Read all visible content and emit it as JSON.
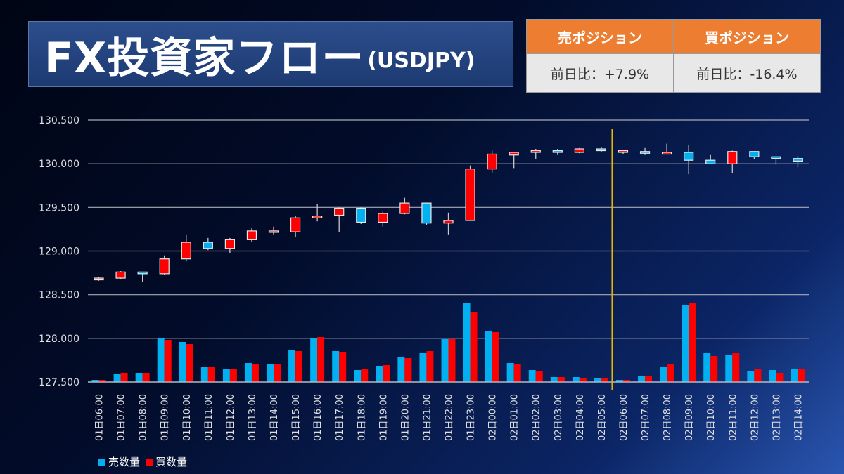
{
  "header": {
    "title": "FX投資家フロー",
    "subtitle": "(USDJPY)"
  },
  "positions": [
    {
      "label": "売ポジション",
      "change": "前日比：+7.9%"
    },
    {
      "label": "買ポジション",
      "change": "前日比：-16.4%"
    }
  ],
  "colors": {
    "sell": "#00b0f0",
    "buy": "#ff0000",
    "marker": "#e8b400",
    "up_candle": "#ff0000",
    "down_candle": "#00b0f0"
  },
  "chart_data": {
    "type": "candlestick+bar",
    "ylim": [
      127.5,
      130.5
    ],
    "yticks": [
      "127.500",
      "128.000",
      "128.500",
      "129.000",
      "129.500",
      "130.000",
      "130.500"
    ],
    "ytick_values": [
      127.5,
      128,
      128.5,
      129,
      129.5,
      130,
      130.5
    ],
    "grid": true,
    "legend_placement": "bottom-left",
    "categories": [
      "01日06:00",
      "01日07:00",
      "01日08:00",
      "01日09:00",
      "01日10:00",
      "01日11:00",
      "01日12:00",
      "01日13:00",
      "01日14:00",
      "01日15:00",
      "01日16:00",
      "01日17:00",
      "01日18:00",
      "01日19:00",
      "01日20:00",
      "01日21:00",
      "01日22:00",
      "01日23:00",
      "02日00:00",
      "02日01:00",
      "02日02:00",
      "02日03:00",
      "02日04:00",
      "02日05:00",
      "02日06:00",
      "02日07:00",
      "02日08:00",
      "02日09:00",
      "02日10:00",
      "02日11:00",
      "02日12:00",
      "02日13:00",
      "02日14:00"
    ],
    "ohlc": [
      [
        128.67,
        128.7,
        128.66,
        128.69
      ],
      [
        128.69,
        128.77,
        128.68,
        128.76
      ],
      [
        128.76,
        128.76,
        128.65,
        128.74
      ],
      [
        128.74,
        128.95,
        128.73,
        128.91
      ],
      [
        128.91,
        129.19,
        128.88,
        129.1
      ],
      [
        129.1,
        129.15,
        129.01,
        129.03
      ],
      [
        129.03,
        129.15,
        128.98,
        129.13
      ],
      [
        129.13,
        129.26,
        129.1,
        129.23
      ],
      [
        129.22,
        129.28,
        129.19,
        129.23
      ],
      [
        129.22,
        129.4,
        129.16,
        129.38
      ],
      [
        129.38,
        129.54,
        129.34,
        129.4
      ],
      [
        129.41,
        129.5,
        129.22,
        129.49
      ],
      [
        129.49,
        129.5,
        129.31,
        129.33
      ],
      [
        129.33,
        129.45,
        129.28,
        129.43
      ],
      [
        129.43,
        129.61,
        129.42,
        129.55
      ],
      [
        129.55,
        129.55,
        129.3,
        129.32
      ],
      [
        129.32,
        129.44,
        129.19,
        129.35
      ],
      [
        129.35,
        129.98,
        129.35,
        129.94
      ],
      [
        129.94,
        130.15,
        129.89,
        130.11
      ],
      [
        130.1,
        130.13,
        129.95,
        130.13
      ],
      [
        130.13,
        130.17,
        130.05,
        130.15
      ],
      [
        130.15,
        130.17,
        130.1,
        130.13
      ],
      [
        130.13,
        130.18,
        130.12,
        130.17
      ],
      [
        130.17,
        130.19,
        130.13,
        130.15
      ],
      [
        130.13,
        130.16,
        130.11,
        130.15
      ],
      [
        130.14,
        130.18,
        130.1,
        130.12
      ],
      [
        130.11,
        130.23,
        130.11,
        130.13
      ],
      [
        130.13,
        130.21,
        129.88,
        130.04
      ],
      [
        130.04,
        130.1,
        130.0,
        130.0
      ],
      [
        130.0,
        130.15,
        129.89,
        130.14
      ],
      [
        130.14,
        130.14,
        130.05,
        130.08
      ],
      [
        130.08,
        130.08,
        129.99,
        130.06
      ],
      [
        130.06,
        130.09,
        129.96,
        130.03
      ]
    ],
    "series": [
      {
        "name": "売数量",
        "values": [
          3,
          12,
          13,
          62,
          57,
          21,
          18,
          27,
          25,
          46,
          63,
          44,
          17,
          23,
          36,
          41,
          61,
          112,
          73,
          27,
          17,
          7,
          7,
          5,
          3,
          8,
          21,
          110,
          41,
          39,
          16,
          17,
          18
        ]
      },
      {
        "name": "買数量",
        "values": [
          3,
          13,
          13,
          60,
          54,
          21,
          18,
          25,
          25,
          44,
          64,
          43,
          18,
          24,
          34,
          44,
          61,
          100,
          71,
          25,
          16,
          7,
          6,
          5,
          3,
          8,
          25,
          112,
          37,
          42,
          19,
          13,
          18
        ]
      }
    ],
    "volume_ylim": [
      0,
      373
    ],
    "marker_after_category": "02日05:00"
  }
}
